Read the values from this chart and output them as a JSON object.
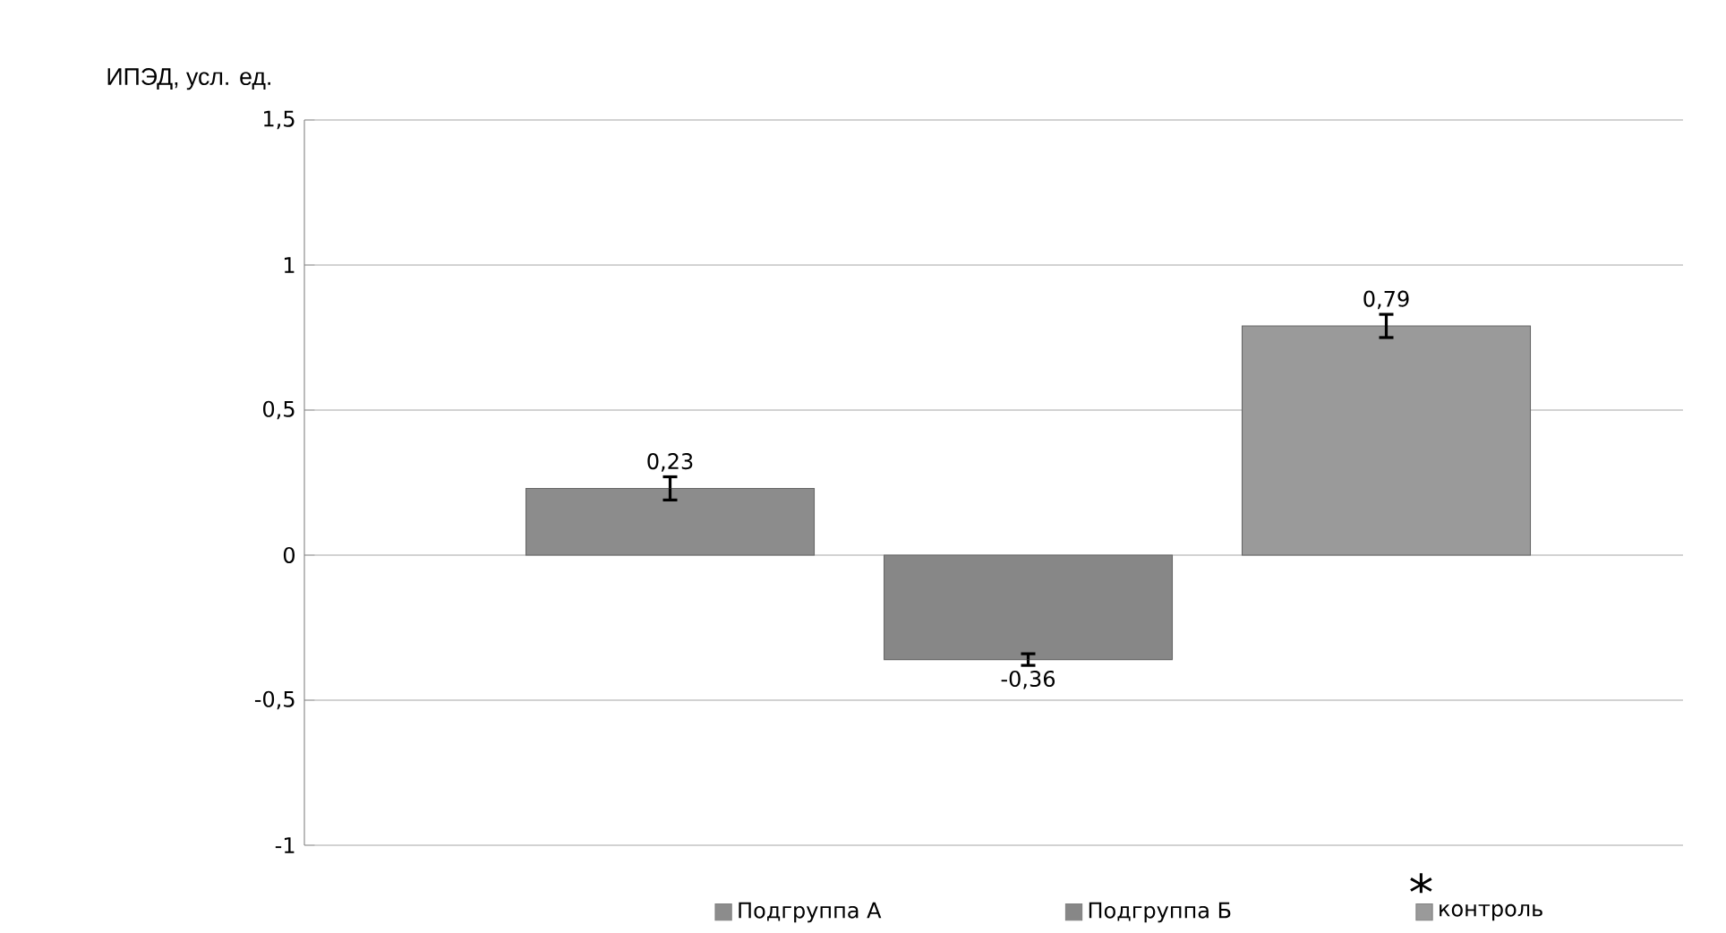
{
  "chart_data": {
    "type": "bar",
    "ylabel": "ИПЭД, усл. ед.",
    "categories": [
      null
    ],
    "series": [
      {
        "name": "Подгруппа А",
        "color": "#8c8c8c",
        "values": [
          0.23
        ],
        "errors": [
          0.04
        ],
        "value_labels": [
          "0,23"
        ]
      },
      {
        "name": "Подгруппа Б",
        "color": "#878787",
        "values": [
          -0.36
        ],
        "errors": [
          0.02
        ],
        "value_labels": [
          "-0,36"
        ]
      },
      {
        "name": "контроль",
        "color": "#9a9a9a",
        "values": [
          0.79
        ],
        "errors": [
          0.04
        ],
        "value_labels": [
          "0,79"
        ]
      }
    ],
    "ylim": [
      -1,
      1.5
    ],
    "yticks": [
      {
        "value": -1,
        "label": "-1"
      },
      {
        "value": -0.5,
        "label": "-0,5"
      },
      {
        "value": 0,
        "label": "0"
      },
      {
        "value": 0.5,
        "label": "0,5"
      },
      {
        "value": 1,
        "label": "1"
      },
      {
        "value": 1.5,
        "label": "1,5"
      }
    ],
    "grid": "y",
    "legend": "bottom",
    "annotations": [
      "*"
    ]
  }
}
